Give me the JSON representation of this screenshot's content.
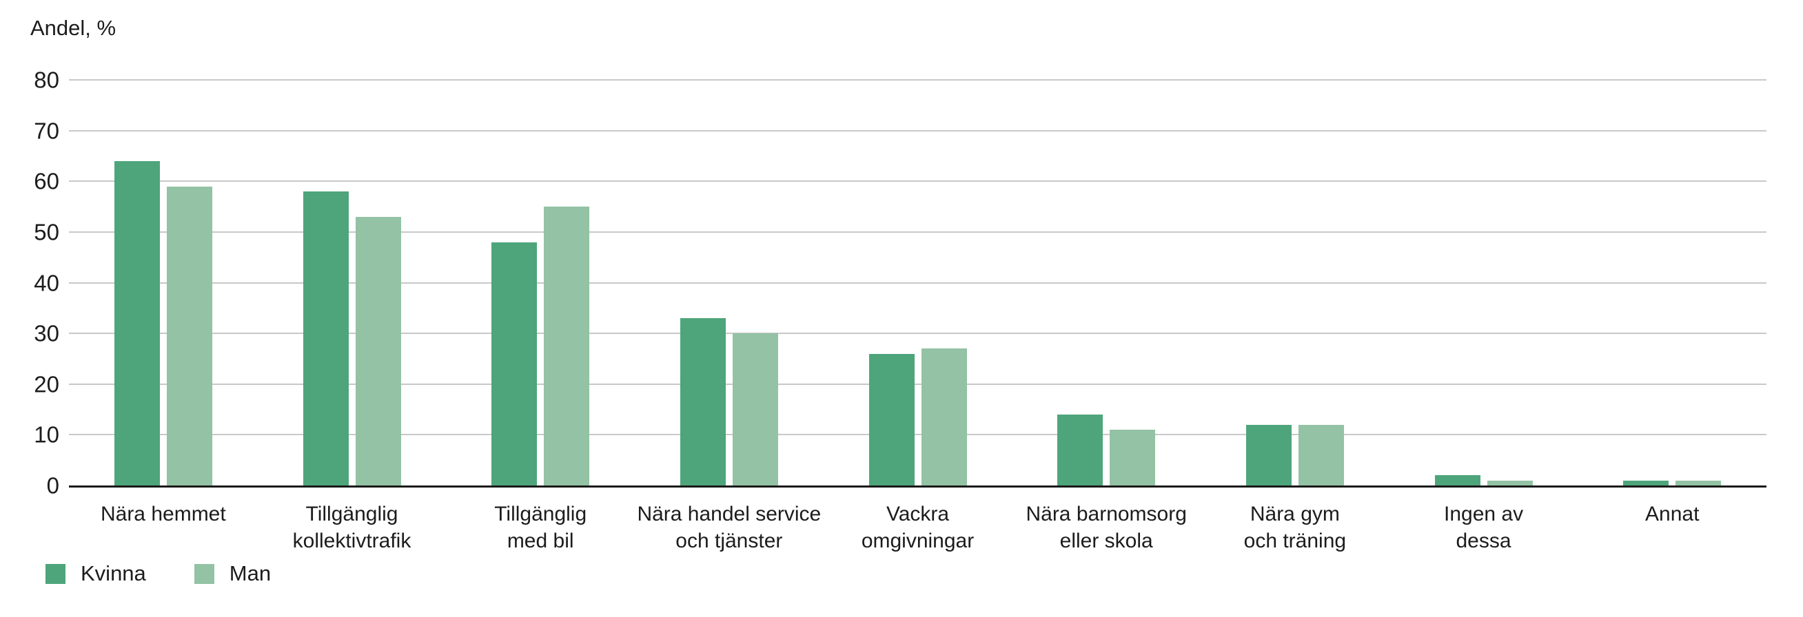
{
  "chart_data": {
    "type": "bar",
    "title": "",
    "ylabel": "Andel, %",
    "xlabel": "",
    "ylim": [
      0,
      80
    ],
    "ytick_step": 10,
    "yticks": [
      0,
      10,
      20,
      30,
      40,
      50,
      60,
      70,
      80
    ],
    "grid": true,
    "legend_position": "bottom-left",
    "categories": [
      "Nära hemmet",
      "Tillgänglig\nkollektivtrafik",
      "Tillgänglig\nmed bil",
      "Nära handel service\noch tjänster",
      "Vackra\nomgivningar",
      "Nära barnomsorg\neller skola",
      "Nära gym\noch träning",
      "Ingen av\ndessa",
      "Annat"
    ],
    "series": [
      {
        "name": "Kvinna",
        "color": "#4EA57B",
        "values": [
          64,
          58,
          48,
          33,
          26,
          14,
          12,
          2,
          1
        ]
      },
      {
        "name": "Man",
        "color": "#93C3A4",
        "values": [
          59,
          53,
          55,
          30,
          27,
          11,
          12,
          1,
          1
        ]
      }
    ]
  },
  "colors": {
    "gridline": "#C8C8C8",
    "axis_line": "#1A1A1A",
    "text": "#1C1C1C",
    "background": "#FFFFFF"
  }
}
